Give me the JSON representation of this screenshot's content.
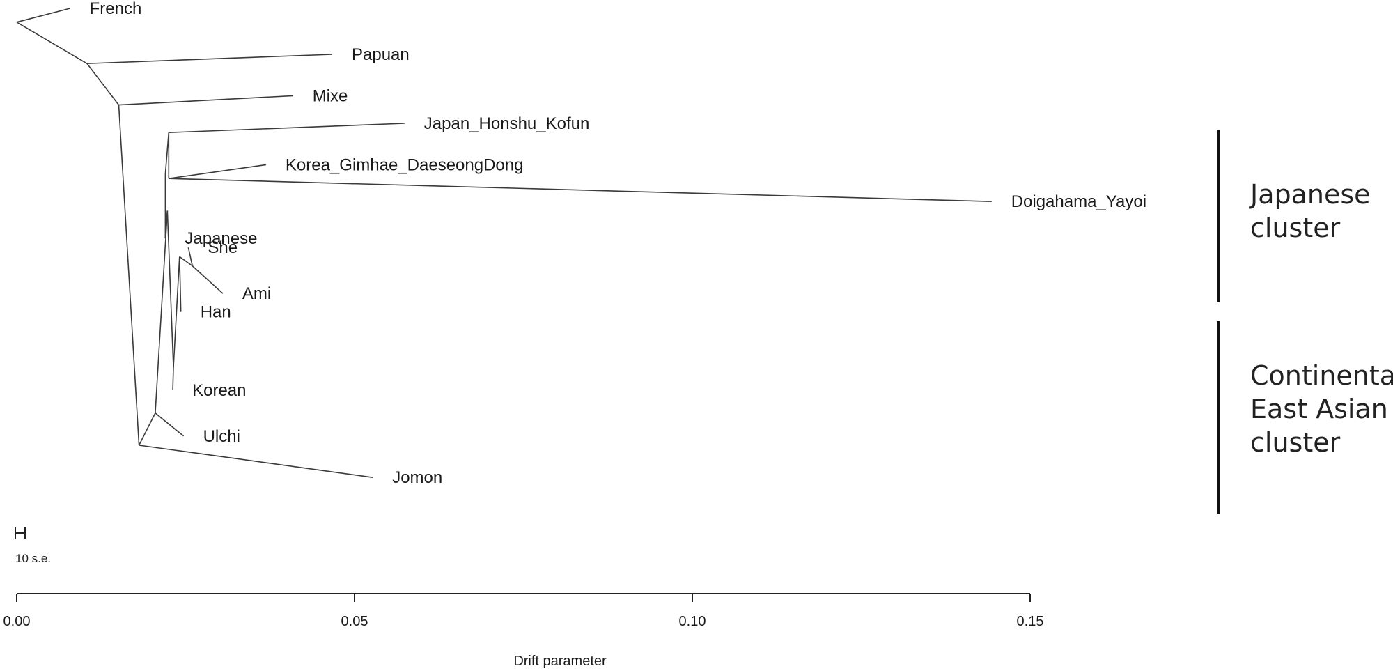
{
  "chart_data": {
    "type": "tree",
    "title": "",
    "xlabel": "Drift parameter",
    "ylabel": "",
    "xlim": [
      0.0,
      0.15
    ],
    "x_ticks": [
      "0.00",
      "0.05",
      "0.10",
      "0.15"
    ],
    "grid": false,
    "scale_bar_label": "10 s.e.",
    "branches": [
      {
        "from": [
          0.0,
          0.3
        ],
        "to": [
          0.0079,
          0.0
        ]
      },
      {
        "from": [
          0.0,
          0.3
        ],
        "to": [
          0.0104,
          1.2
        ]
      },
      {
        "from": [
          0.0104,
          1.2
        ],
        "to": [
          0.0467,
          1.0
        ]
      },
      {
        "from": [
          0.0104,
          1.2
        ],
        "to": [
          0.0151,
          2.1
        ]
      },
      {
        "from": [
          0.0151,
          2.1
        ],
        "to": [
          0.0409,
          1.9
        ]
      },
      {
        "from": [
          0.0151,
          2.1
        ],
        "to": [
          0.0181,
          9.5
        ]
      },
      {
        "from": [
          0.0181,
          9.5
        ],
        "to": [
          0.0527,
          10.2
        ]
      },
      {
        "from": [
          0.0181,
          9.5
        ],
        "to": [
          0.0205,
          8.8
        ]
      },
      {
        "from": [
          0.0205,
          8.8
        ],
        "to": [
          0.0247,
          9.3
        ]
      },
      {
        "from": [
          0.0205,
          8.8
        ],
        "to": [
          0.0223,
          4.4
        ]
      },
      {
        "from": [
          0.0223,
          4.4
        ],
        "to": [
          0.022,
          5.0
        ]
      },
      {
        "from": [
          0.0223,
          4.4
        ],
        "to": [
          0.0232,
          7.8
        ]
      },
      {
        "from": [
          0.0232,
          7.8
        ],
        "to": [
          0.0231,
          8.3
        ]
      },
      {
        "from": [
          0.0232,
          7.8
        ],
        "to": [
          0.0241,
          5.4
        ]
      },
      {
        "from": [
          0.0241,
          5.4
        ],
        "to": [
          0.0243,
          6.6
        ]
      },
      {
        "from": [
          0.0241,
          5.4
        ],
        "to": [
          0.026,
          5.6
        ]
      },
      {
        "from": [
          0.026,
          5.6
        ],
        "to": [
          0.0254,
          5.2
        ]
      },
      {
        "from": [
          0.026,
          5.6
        ],
        "to": [
          0.0305,
          6.2
        ]
      },
      {
        "from": [
          0.022,
          5.0
        ],
        "to": [
          0.022,
          3.6
        ]
      },
      {
        "from": [
          0.022,
          3.6
        ],
        "to": [
          0.0225,
          2.7
        ]
      },
      {
        "from": [
          0.0225,
          2.7
        ],
        "to": [
          0.0574,
          2.5
        ]
      },
      {
        "from": [
          0.0225,
          2.7
        ],
        "to": [
          0.0225,
          3.7
        ]
      },
      {
        "from": [
          0.0225,
          3.7
        ],
        "to": [
          0.0369,
          3.4
        ]
      },
      {
        "from": [
          0.0225,
          3.7
        ],
        "to": [
          0.1443,
          4.2
        ]
      }
    ],
    "leaves": [
      {
        "name": "French",
        "x": 0.0079,
        "row": 0.0
      },
      {
        "name": "Papuan",
        "x": 0.0467,
        "row": 1.0
      },
      {
        "name": "Mixe",
        "x": 0.0409,
        "row": 1.9
      },
      {
        "name": "Japan_Honshu_Kofun",
        "x": 0.0574,
        "row": 2.5
      },
      {
        "name": "Korea_Gimhae_DaeseongDong",
        "x": 0.0369,
        "row": 3.4
      },
      {
        "name": "Doigahama_Yayoi",
        "x": 0.1443,
        "row": 4.2
      },
      {
        "name": "Japanese",
        "x": 0.022,
        "row": 5.0
      },
      {
        "name": "She",
        "x": 0.0254,
        "row": 5.2
      },
      {
        "name": "Ami",
        "x": 0.0305,
        "row": 6.2
      },
      {
        "name": "Han",
        "x": 0.0243,
        "row": 6.6
      },
      {
        "name": "Korean",
        "x": 0.0231,
        "row": 8.3
      },
      {
        "name": "Ulchi",
        "x": 0.0247,
        "row": 9.3
      },
      {
        "name": "Jomon",
        "x": 0.0527,
        "row": 10.2
      }
    ],
    "clusters": [
      {
        "lines": [
          "Japanese",
          "cluster"
        ]
      },
      {
        "lines": [
          "Continental",
          "East Asian",
          "cluster"
        ]
      }
    ]
  }
}
